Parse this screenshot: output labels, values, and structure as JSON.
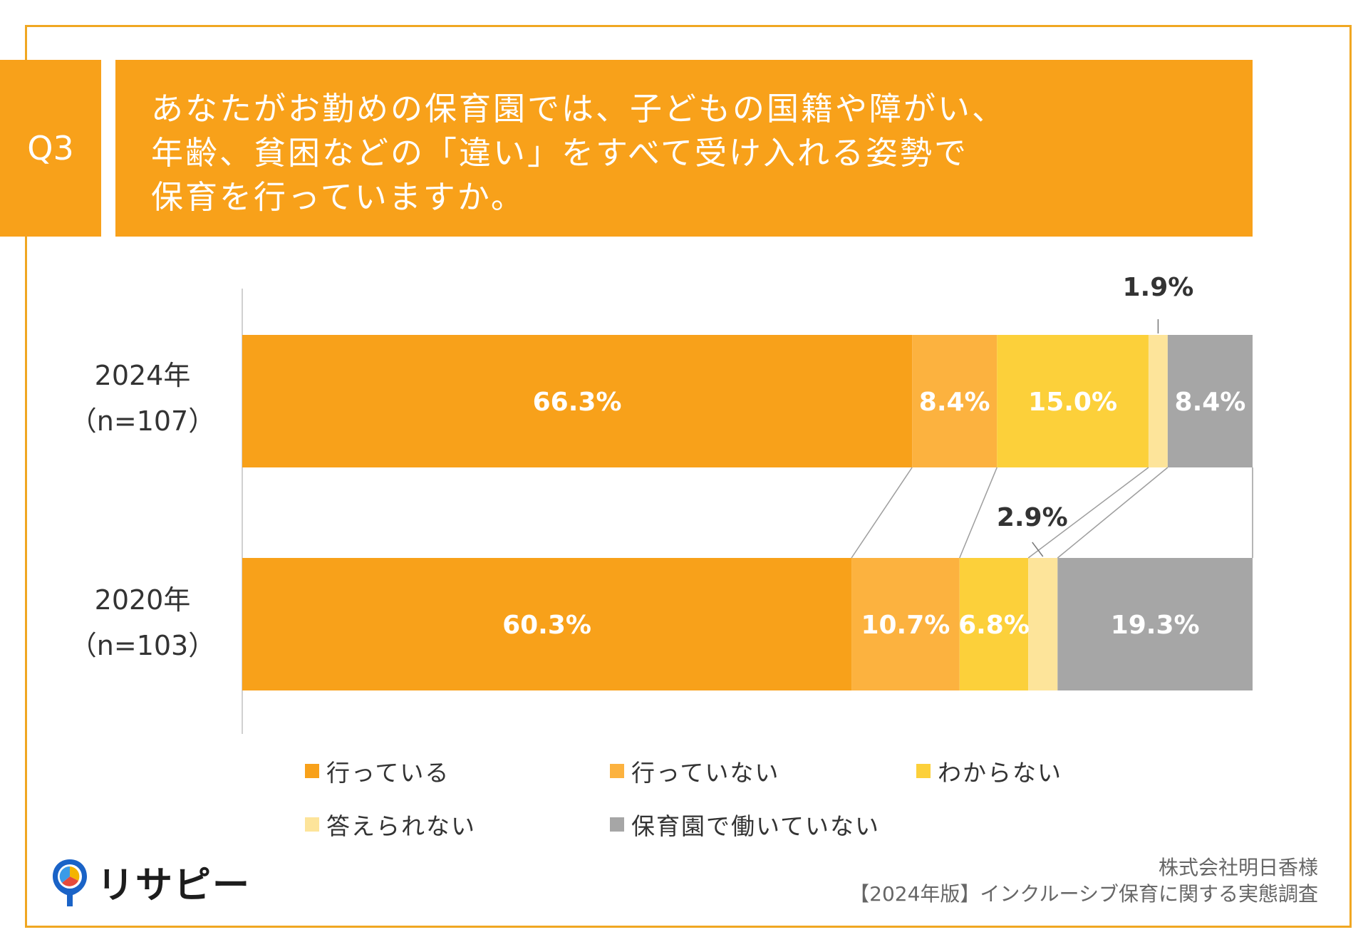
{
  "question_label": "Q3",
  "title_lines": [
    "あなたがお勤めの保育園では、子どもの国籍や障がい、",
    "年齢、貧困などの「違い」をすべて受け入れる姿勢で",
    "保育を行っていますか。"
  ],
  "colors": {
    "frame": "#f0a722",
    "header_bg": "#f8a11a",
    "series": [
      "#f8a11a",
      "#fcb23f",
      "#fcd03a",
      "#fde49a",
      "#a6a6a6"
    ]
  },
  "chart_data": {
    "type": "bar",
    "orientation": "horizontal",
    "stacked": true,
    "normalized": true,
    "categories": [
      {
        "year": "2024年",
        "n": "（n=107）"
      },
      {
        "year": "2020年",
        "n": "（n=103）"
      }
    ],
    "series": [
      {
        "name": "行っている",
        "values": [
          66.3,
          60.3
        ],
        "labels": [
          "66.3%",
          "60.3%"
        ]
      },
      {
        "name": "行っていない",
        "values": [
          8.4,
          10.7
        ],
        "labels": [
          "8.4%",
          "10.7%"
        ]
      },
      {
        "name": "わからない",
        "values": [
          15.0,
          6.8
        ],
        "labels": [
          "15.0%",
          "6.8%"
        ]
      },
      {
        "name": "答えられない",
        "values": [
          1.9,
          2.9
        ],
        "labels": [
          "1.9%",
          "2.9%"
        ]
      },
      {
        "name": "保育園で働いていない",
        "values": [
          8.4,
          19.3
        ],
        "labels": [
          "8.4%",
          "19.3%"
        ]
      }
    ],
    "xlim": [
      0,
      100
    ],
    "legend_position": "bottom",
    "unit": "%"
  },
  "legend": [
    "行っている",
    "行っていない",
    "わからない",
    "答えられない",
    "保育園で働いていない"
  ],
  "logo_text": "リサピー",
  "source_lines": [
    "株式会社明日香様",
    "【2024年版】インクルーシブ保育に関する実態調査"
  ]
}
